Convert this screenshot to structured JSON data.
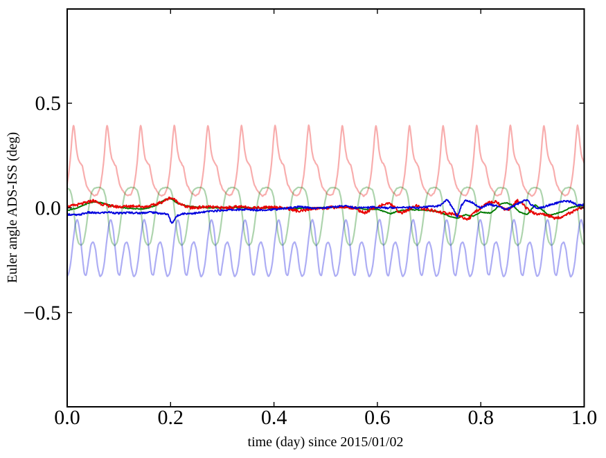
{
  "figure": {
    "background": "#ffffff",
    "axis_color": "#000000"
  },
  "chart_data": {
    "type": "line",
    "title": "",
    "xlabel": "time (day) since 2015/01/02",
    "ylabel": "Euler angle ADS-ISS (deg)",
    "xlim": [
      0.0,
      1.0
    ],
    "ylim": [
      -0.95,
      0.95
    ],
    "grid": false,
    "legend": "none",
    "xticks": [
      0.0,
      0.2,
      0.4,
      0.6,
      0.8,
      1.0
    ],
    "xtick_labels": [
      "0.0",
      "0.2",
      "0.4",
      "0.6",
      "0.8",
      "1.0"
    ],
    "yticks": [
      0.5,
      0.0,
      -0.5
    ],
    "ytick_labels": [
      "0.5",
      "0.0",
      "−0.5"
    ],
    "tick_direction": "in",
    "orbital_period_day": 0.065,
    "series": [
      {
        "name": "pale-red-orbital-euler-x",
        "color": "#e80000",
        "opacity": 0.32,
        "width": 2.2,
        "kind": "periodic",
        "period": 0.065,
        "phase": 0.012,
        "noise": 0.005,
        "fuzzy": false,
        "profile": [
          [
            0,
            0.405
          ],
          [
            0.04,
            0.36
          ],
          [
            0.09,
            0.28
          ],
          [
            0.14,
            0.235
          ],
          [
            0.2,
            0.215
          ],
          [
            0.27,
            0.2
          ],
          [
            0.32,
            0.155
          ],
          [
            0.38,
            0.11
          ],
          [
            0.46,
            0.085
          ],
          [
            0.54,
            0.068
          ],
          [
            0.63,
            0.058
          ],
          [
            0.72,
            0.065
          ],
          [
            0.8,
            0.1
          ],
          [
            0.86,
            0.16
          ],
          [
            0.91,
            0.235
          ],
          [
            0.955,
            0.33
          ],
          [
            1,
            0.405
          ]
        ]
      },
      {
        "name": "pale-green-orbital-euler-y",
        "color": "#007a00",
        "opacity": 0.32,
        "width": 2.2,
        "kind": "periodic",
        "period": 0.065,
        "phase": 0.059,
        "noise": 0.003,
        "fuzzy": false,
        "profile": [
          [
            0,
            0.098
          ],
          [
            0.1,
            0.095
          ],
          [
            0.18,
            0.085
          ],
          [
            0.24,
            0.05
          ],
          [
            0.3,
            -0.03
          ],
          [
            0.36,
            -0.12
          ],
          [
            0.42,
            -0.165
          ],
          [
            0.5,
            -0.18
          ],
          [
            0.58,
            -0.165
          ],
          [
            0.64,
            -0.115
          ],
          [
            0.7,
            -0.04
          ],
          [
            0.76,
            0.03
          ],
          [
            0.82,
            0.075
          ],
          [
            0.9,
            0.093
          ],
          [
            1,
            0.098
          ]
        ]
      },
      {
        "name": "pale-blue-orbital-euler-z",
        "color": "#0000dd",
        "opacity": 0.32,
        "width": 2.2,
        "kind": "periodic",
        "period": 0.065,
        "phase": 0.02,
        "noise": 0.003,
        "fuzzy": false,
        "profile": [
          [
            0,
            -0.055
          ],
          [
            0.06,
            -0.1
          ],
          [
            0.13,
            -0.21
          ],
          [
            0.2,
            -0.315
          ],
          [
            0.26,
            -0.325
          ],
          [
            0.32,
            -0.26
          ],
          [
            0.4,
            -0.175
          ],
          [
            0.47,
            -0.16
          ],
          [
            0.54,
            -0.2
          ],
          [
            0.6,
            -0.285
          ],
          [
            0.67,
            -0.33
          ],
          [
            0.74,
            -0.315
          ],
          [
            0.8,
            -0.26
          ],
          [
            0.87,
            -0.155
          ],
          [
            0.93,
            -0.08
          ],
          [
            0.97,
            -0.058
          ],
          [
            1,
            -0.055
          ]
        ]
      },
      {
        "name": "solid-green-residual-euler-y",
        "color": "#007a00",
        "opacity": 1.0,
        "width": 1.9,
        "kind": "timeline",
        "noise": 0.002,
        "fuzzy": true,
        "keypoints": [
          [
            0,
            -0.012
          ],
          [
            0.02,
            0.0
          ],
          [
            0.04,
            0.022
          ],
          [
            0.055,
            0.03
          ],
          [
            0.07,
            0.022
          ],
          [
            0.09,
            0.008
          ],
          [
            0.12,
            -0.003
          ],
          [
            0.15,
            -0.005
          ],
          [
            0.17,
            0.01
          ],
          [
            0.19,
            0.04
          ],
          [
            0.2,
            0.045
          ],
          [
            0.215,
            0.02
          ],
          [
            0.23,
            0.01
          ],
          [
            0.25,
            0.004
          ],
          [
            0.28,
            0.0
          ],
          [
            0.32,
            0.002
          ],
          [
            0.36,
            0.0
          ],
          [
            0.4,
            0.0
          ],
          [
            0.44,
            -0.003
          ],
          [
            0.48,
            0.0
          ],
          [
            0.52,
            0.003
          ],
          [
            0.55,
            0.004
          ],
          [
            0.58,
            -0.008
          ],
          [
            0.6,
            -0.006
          ],
          [
            0.625,
            -0.028
          ],
          [
            0.64,
            -0.015
          ],
          [
            0.66,
            -0.008
          ],
          [
            0.68,
            -0.01
          ],
          [
            0.7,
            -0.012
          ],
          [
            0.72,
            -0.02
          ],
          [
            0.74,
            -0.04
          ],
          [
            0.755,
            -0.05
          ],
          [
            0.77,
            -0.032
          ],
          [
            0.785,
            -0.04
          ],
          [
            0.8,
            -0.02
          ],
          [
            0.82,
            -0.025
          ],
          [
            0.838,
            0.018
          ],
          [
            0.85,
            0.025
          ],
          [
            0.862,
            0.012
          ],
          [
            0.875,
            -0.02
          ],
          [
            0.89,
            -0.032
          ],
          [
            0.905,
            0.015
          ],
          [
            0.918,
            -0.008
          ],
          [
            0.932,
            -0.035
          ],
          [
            0.945,
            -0.028
          ],
          [
            0.958,
            -0.018
          ],
          [
            0.972,
            0.0
          ],
          [
            0.985,
            0.008
          ],
          [
            1,
            0.01
          ]
        ]
      },
      {
        "name": "solid-red-residual-euler-x",
        "color": "#e80000",
        "opacity": 1.0,
        "width": 1.9,
        "kind": "timeline",
        "noise": 0.007,
        "fuzzy": true,
        "keypoints": [
          [
            0,
            0.005
          ],
          [
            0.01,
            0.01
          ],
          [
            0.03,
            0.02
          ],
          [
            0.05,
            0.035
          ],
          [
            0.065,
            0.02
          ],
          [
            0.08,
            0.01
          ],
          [
            0.1,
            0.005
          ],
          [
            0.13,
            0.01
          ],
          [
            0.15,
            0.005
          ],
          [
            0.17,
            0.015
          ],
          [
            0.185,
            0.03
          ],
          [
            0.2,
            0.05
          ],
          [
            0.21,
            0.035
          ],
          [
            0.225,
            0.01
          ],
          [
            0.24,
            0.0
          ],
          [
            0.27,
            0.005
          ],
          [
            0.3,
            0.0
          ],
          [
            0.33,
            0.005
          ],
          [
            0.36,
            0.0
          ],
          [
            0.4,
            0.005
          ],
          [
            0.43,
            -0.005
          ],
          [
            0.45,
            -0.018
          ],
          [
            0.47,
            -0.005
          ],
          [
            0.5,
            0.0
          ],
          [
            0.53,
            0.005
          ],
          [
            0.555,
            0.0
          ],
          [
            0.575,
            -0.025
          ],
          [
            0.59,
            -0.005
          ],
          [
            0.61,
            0.015
          ],
          [
            0.625,
            0.02
          ],
          [
            0.645,
            -0.025
          ],
          [
            0.66,
            -0.01
          ],
          [
            0.675,
            0.01
          ],
          [
            0.69,
            -0.005
          ],
          [
            0.71,
            -0.015
          ],
          [
            0.73,
            -0.025
          ],
          [
            0.75,
            -0.03
          ],
          [
            0.765,
            -0.045
          ],
          [
            0.775,
            -0.055
          ],
          [
            0.79,
            -0.02
          ],
          [
            0.805,
            0.01
          ],
          [
            0.815,
            0.025
          ],
          [
            0.83,
            0.03
          ],
          [
            0.845,
            -0.005
          ],
          [
            0.855,
            -0.01
          ],
          [
            0.87,
            0.035
          ],
          [
            0.88,
            0.02
          ],
          [
            0.89,
            -0.005
          ],
          [
            0.9,
            -0.025
          ],
          [
            0.92,
            -0.03
          ],
          [
            0.935,
            -0.04
          ],
          [
            0.945,
            -0.05
          ],
          [
            0.96,
            -0.04
          ],
          [
            0.975,
            -0.02
          ],
          [
            0.99,
            -0.005
          ],
          [
            1,
            0.0
          ]
        ]
      },
      {
        "name": "solid-blue-residual-euler-z",
        "color": "#0000dd",
        "opacity": 1.0,
        "width": 1.9,
        "kind": "timeline",
        "noise": 0.0045,
        "fuzzy": true,
        "keypoints": [
          [
            0,
            -0.03
          ],
          [
            0.02,
            -0.035
          ],
          [
            0.04,
            -0.022
          ],
          [
            0.06,
            -0.025
          ],
          [
            0.08,
            -0.02
          ],
          [
            0.1,
            -0.026
          ],
          [
            0.12,
            -0.022
          ],
          [
            0.14,
            -0.025
          ],
          [
            0.16,
            -0.02
          ],
          [
            0.18,
            -0.026
          ],
          [
            0.195,
            -0.03
          ],
          [
            0.202,
            -0.075
          ],
          [
            0.212,
            -0.04
          ],
          [
            0.22,
            -0.028
          ],
          [
            0.25,
            -0.025
          ],
          [
            0.28,
            -0.015
          ],
          [
            0.31,
            -0.01
          ],
          [
            0.34,
            -0.008
          ],
          [
            0.37,
            -0.01
          ],
          [
            0.4,
            -0.008
          ],
          [
            0.43,
            0.0
          ],
          [
            0.45,
            0.005
          ],
          [
            0.48,
            -0.002
          ],
          [
            0.51,
            0.003
          ],
          [
            0.535,
            0.01
          ],
          [
            0.56,
            0.0
          ],
          [
            0.59,
            0.004
          ],
          [
            0.62,
            0.0
          ],
          [
            0.65,
            0.004
          ],
          [
            0.68,
            0.0
          ],
          [
            0.7,
            0.006
          ],
          [
            0.72,
            0.01
          ],
          [
            0.735,
            0.04
          ],
          [
            0.748,
            -0.01
          ],
          [
            0.755,
            -0.045
          ],
          [
            0.762,
            0.01
          ],
          [
            0.77,
            0.035
          ],
          [
            0.78,
            0.03
          ],
          [
            0.8,
            0.0
          ],
          [
            0.815,
            0.018
          ],
          [
            0.83,
            0.01
          ],
          [
            0.85,
            -0.008
          ],
          [
            0.868,
            0.015
          ],
          [
            0.888,
            0.04
          ],
          [
            0.9,
            0.01
          ],
          [
            0.912,
            -0.002
          ],
          [
            0.928,
            0.01
          ],
          [
            0.945,
            0.022
          ],
          [
            0.962,
            0.032
          ],
          [
            0.975,
            0.03
          ],
          [
            0.988,
            0.012
          ],
          [
            1,
            0.015
          ]
        ]
      }
    ]
  }
}
